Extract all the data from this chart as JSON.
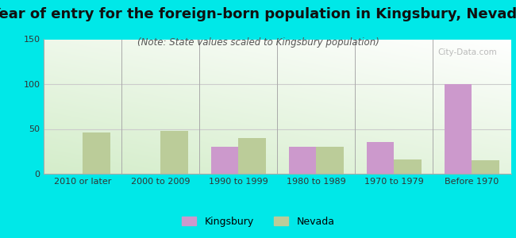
{
  "title": "Year of entry for the foreign-born population in Kingsbury, Nevada",
  "subtitle": "(Note: State values scaled to Kingsbury population)",
  "categories": [
    "2010 or later",
    "2000 to 2009",
    "1990 to 1999",
    "1980 to 1989",
    "1970 to 1979",
    "Before 1970"
  ],
  "kingsbury_values": [
    0,
    0,
    30,
    30,
    35,
    100
  ],
  "nevada_values": [
    46,
    48,
    40,
    30,
    16,
    15
  ],
  "kingsbury_color": "#cc99cc",
  "nevada_color": "#bbcc99",
  "background_outer": "#00e8e8",
  "ylim": [
    0,
    150
  ],
  "yticks": [
    0,
    50,
    100,
    150
  ],
  "title_fontsize": 13,
  "subtitle_fontsize": 8.5,
  "legend_fontsize": 9,
  "tick_fontsize": 8,
  "bar_width": 0.35
}
